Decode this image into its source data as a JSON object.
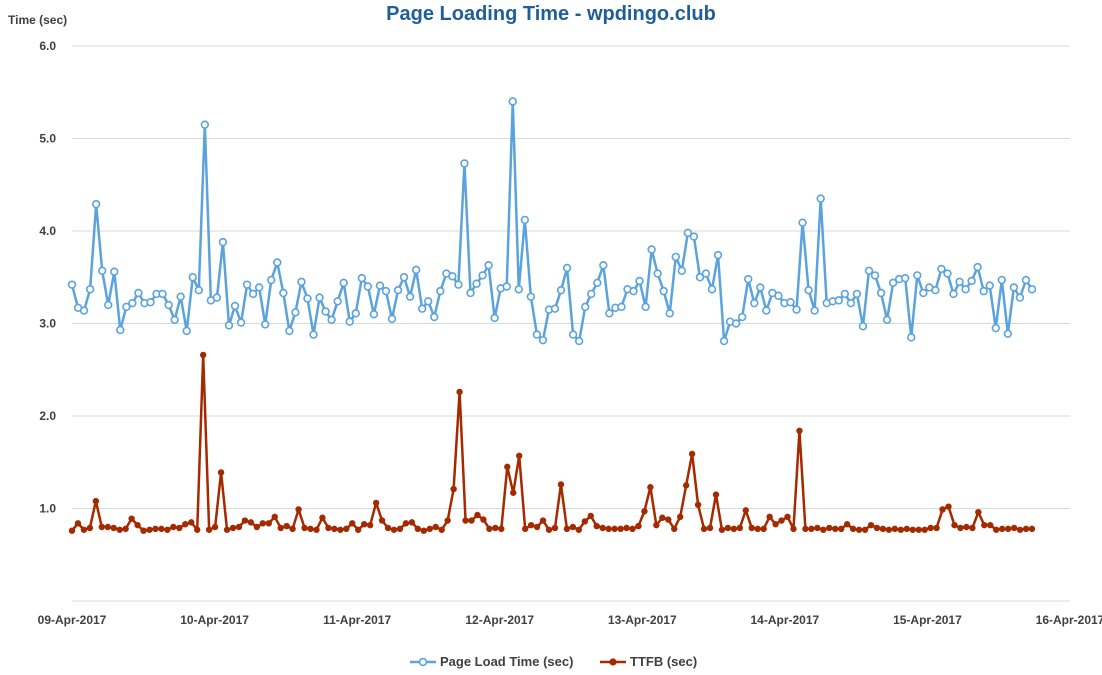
{
  "chart_data": {
    "type": "line",
    "title": "Page Loading Time - wpdingo.club",
    "ylabel": "Time (sec)",
    "xlabel": "",
    "ylim": [
      0,
      6
    ],
    "yticks": [
      "6.0",
      "5.0",
      "4.0",
      "3.0",
      "2.0",
      "1.0"
    ],
    "ytick_values": [
      6,
      5,
      4,
      3,
      2,
      1
    ],
    "xlim": [
      "2017-04-09",
      "2017-04-16"
    ],
    "xticks": [
      "09-Apr-2017",
      "10-Apr-2017",
      "11-Apr-2017",
      "12-Apr-2017",
      "13-Apr-2017",
      "14-Apr-2017",
      "15-Apr-2017",
      "16-Apr-2017"
    ],
    "grid": true,
    "legend_position": "bottom",
    "colors": {
      "title": "#1F5F99",
      "page_load": "#5BA3DC",
      "ttfb": "#A52A00",
      "grid": "#D9D9D9"
    },
    "series": [
      {
        "name": "Page Load Time (sec)",
        "marker": "open-circle",
        "values": [
          3.42,
          3.17,
          3.14,
          3.37,
          4.29,
          3.57,
          3.2,
          3.56,
          2.93,
          3.18,
          3.22,
          3.33,
          3.22,
          3.23,
          3.32,
          3.32,
          3.2,
          3.04,
          3.29,
          2.92,
          3.5,
          3.36,
          5.15,
          3.25,
          3.28,
          3.88,
          2.98,
          3.19,
          3.01,
          3.42,
          3.32,
          3.39,
          2.99,
          3.47,
          3.66,
          3.33,
          2.92,
          3.12,
          3.45,
          3.27,
          2.88,
          3.28,
          3.13,
          3.04,
          3.24,
          3.44,
          3.02,
          3.11,
          3.49,
          3.4,
          3.1,
          3.41,
          3.35,
          3.05,
          3.36,
          3.5,
          3.29,
          3.58,
          3.16,
          3.24,
          3.07,
          3.35,
          3.54,
          3.51,
          3.42,
          4.73,
          3.33,
          3.43,
          3.52,
          3.63,
          3.06,
          3.38,
          3.4,
          5.4,
          3.37,
          4.12,
          3.29,
          2.88,
          2.82,
          3.15,
          3.16,
          3.36,
          3.6,
          2.88,
          2.81,
          3.18,
          3.32,
          3.44,
          3.63,
          3.11,
          3.17,
          3.18,
          3.37,
          3.35,
          3.46,
          3.18,
          3.8,
          3.54,
          3.35,
          3.11,
          3.72,
          3.57,
          3.98,
          3.94,
          3.5,
          3.54,
          3.37,
          3.74,
          2.81,
          3.02,
          3.0,
          3.07,
          3.48,
          3.22,
          3.39,
          3.14,
          3.33,
          3.3,
          3.22,
          3.23,
          3.15,
          4.09,
          3.36,
          3.14,
          4.35,
          3.22,
          3.24,
          3.25,
          3.32,
          3.22,
          3.32,
          2.97,
          3.57,
          3.52,
          3.33,
          3.04,
          3.44,
          3.48,
          3.49,
          2.85,
          3.52,
          3.33,
          3.39,
          3.36,
          3.59,
          3.54,
          3.32,
          3.45,
          3.37,
          3.46,
          3.61,
          3.35,
          3.41,
          2.95,
          3.47,
          2.89,
          3.39,
          3.28,
          3.47,
          3.37
        ]
      },
      {
        "name": "TTFB (sec)",
        "marker": "filled-circle",
        "values": [
          0.76,
          0.84,
          0.77,
          0.79,
          1.08,
          0.8,
          0.8,
          0.79,
          0.77,
          0.78,
          0.89,
          0.82,
          0.76,
          0.77,
          0.78,
          0.78,
          0.77,
          0.8,
          0.79,
          0.83,
          0.85,
          0.77,
          2.66,
          0.77,
          0.8,
          1.39,
          0.77,
          0.79,
          0.8,
          0.87,
          0.85,
          0.8,
          0.84,
          0.84,
          0.91,
          0.79,
          0.81,
          0.78,
          0.99,
          0.79,
          0.78,
          0.77,
          0.9,
          0.79,
          0.78,
          0.77,
          0.78,
          0.84,
          0.77,
          0.83,
          0.82,
          1.06,
          0.87,
          0.79,
          0.77,
          0.78,
          0.84,
          0.85,
          0.78,
          0.76,
          0.78,
          0.8,
          0.77,
          0.87,
          1.21,
          2.26,
          0.87,
          0.87,
          0.93,
          0.88,
          0.78,
          0.79,
          0.78,
          1.45,
          1.17,
          1.57,
          0.78,
          0.82,
          0.8,
          0.87,
          0.77,
          0.79,
          1.26,
          0.78,
          0.8,
          0.77,
          0.86,
          0.92,
          0.81,
          0.79,
          0.78,
          0.78,
          0.78,
          0.79,
          0.78,
          0.81,
          0.97,
          1.23,
          0.82,
          0.9,
          0.88,
          0.78,
          0.91,
          1.25,
          1.59,
          1.04,
          0.78,
          0.79,
          1.15,
          0.77,
          0.79,
          0.78,
          0.79,
          0.98,
          0.79,
          0.78,
          0.78,
          0.91,
          0.83,
          0.87,
          0.91,
          0.78,
          1.84,
          0.78,
          0.78,
          0.79,
          0.77,
          0.79,
          0.78,
          0.78,
          0.83,
          0.78,
          0.77,
          0.77,
          0.82,
          0.79,
          0.78,
          0.77,
          0.78,
          0.77,
          0.78,
          0.77,
          0.77,
          0.77,
          0.79,
          0.79,
          0.99,
          1.02,
          0.82,
          0.79,
          0.8,
          0.79,
          0.96,
          0.82,
          0.82,
          0.77,
          0.78,
          0.78,
          0.79,
          0.77,
          0.78,
          0.78
        ]
      }
    ]
  }
}
